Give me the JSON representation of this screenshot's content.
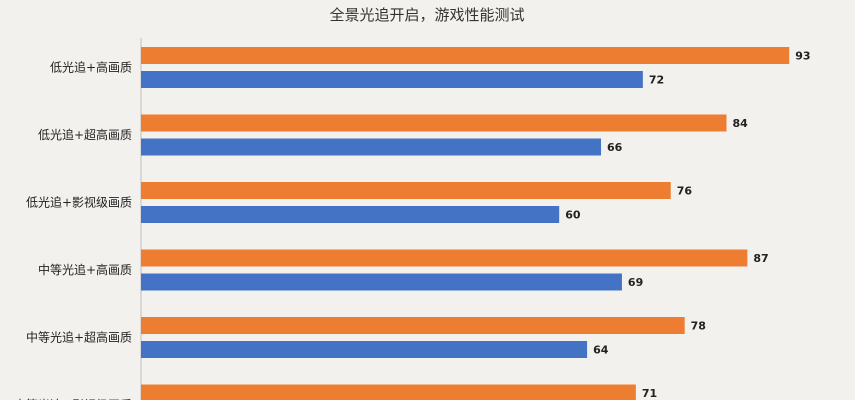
{
  "chart_data": {
    "type": "bar",
    "orientation": "horizontal",
    "title": "全景光追开启，游戏性能测试",
    "xlabel": "",
    "ylabel": "",
    "xlim": [
      0,
      100
    ],
    "grid": false,
    "categories": [
      "低光追+高画质",
      "低光追+超高画质",
      "低光追+影视级画质",
      "中等光追+高画质",
      "中等光追+超高画质",
      "中等光追+影视级画质"
    ],
    "series": [
      {
        "color": "#ed7d31",
        "values": [
          93,
          84,
          76,
          87,
          78,
          71
        ]
      },
      {
        "color": "#4472c4",
        "values": [
          72,
          66,
          60,
          69,
          64,
          null
        ]
      }
    ]
  }
}
